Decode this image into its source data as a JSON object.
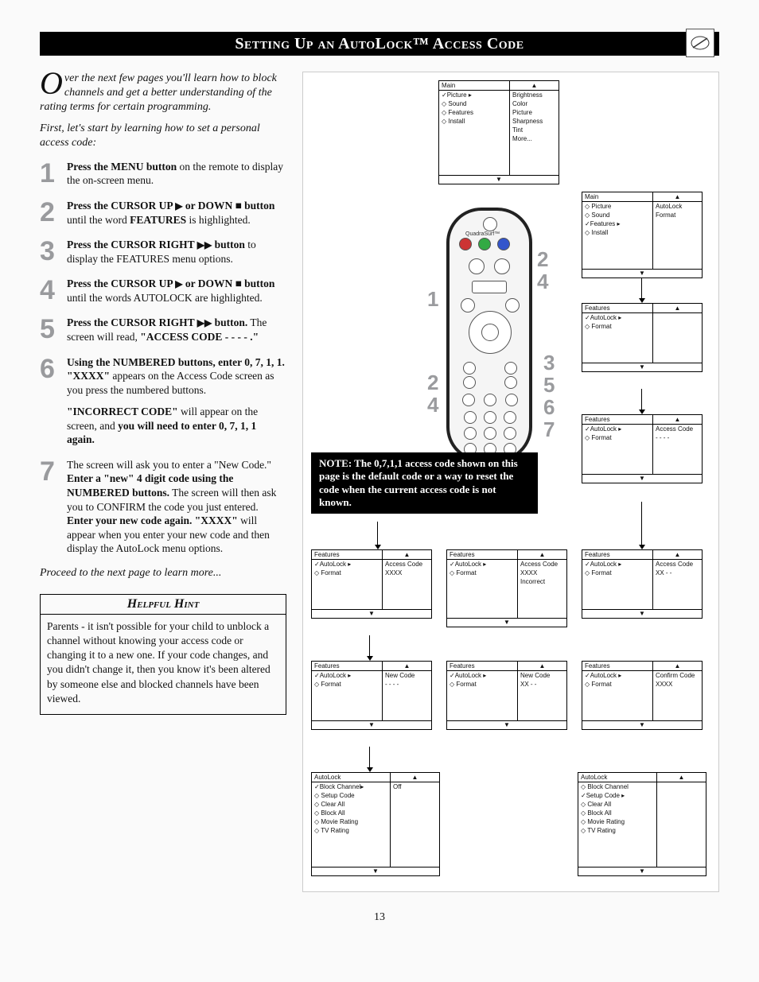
{
  "page": {
    "title": "Setting Up an AutoLock™ Access Code",
    "number": "13"
  },
  "intro": {
    "drop": "O",
    "p1": "ver the next few pages you'll learn how to block channels and get a better understanding of the rating terms for certain programming.",
    "p2": "First, let's start by learning how to set a personal access code:"
  },
  "steps": [
    {
      "n": "1",
      "html": "<span class='bold'>Press the MENU button</span> on the remote to display the on-screen menu."
    },
    {
      "n": "2",
      "html": "<span class='bold'>Press the CURSOR UP <span class='arrow'>▶</span>  or  DOWN ■ button</span> until the word <span class='bold'>FEATURES</span> is highlighted."
    },
    {
      "n": "3",
      "html": "<span class='bold'>Press the CURSOR RIGHT <span class='arrow'>▶▶</span> button</span> to display the FEATURES menu options."
    },
    {
      "n": "4",
      "html": "<span class='bold'>Press the CURSOR UP <span class='arrow'>▶</span> or  DOWN ■ button</span> until the words AUTOLOCK are highlighted."
    },
    {
      "n": "5",
      "html": "<span class='bold'>Press the CURSOR RIGHT <span class='arrow'>▶▶</span> button.</span> The screen will read, <span class='bold'>\"ACCESS CODE - - - - .\"</span>"
    },
    {
      "n": "6",
      "html": "<span class='bold'>Using the NUMBERED buttons, enter 0, 7, 1, 1. \"XXXX\"</span> appears on the Access Code screen as you press the numbered buttons.<div class='sub'><span class='bold'>\"INCORRECT CODE\"</span> will appear on the screen, and <span class='bold'>you will need to enter 0, 7, 1, 1 again.</span></div>"
    },
    {
      "n": "7",
      "html": "The screen will ask you to enter a \"New Code.\" <span class='bold'>Enter a \"new\" 4 digit code using the NUMBERED buttons.</span> The screen will then ask you to CONFIRM the code you just entered. <span class='bold'>Enter your new code again. \"XXXX\"</span> will appear when you enter your new code and then display the AutoLock menu options."
    }
  ],
  "proceed": "Proceed to the next page to learn more...",
  "hint": {
    "title": "Helpful Hint",
    "body": "Parents - it isn't possible for your child to unblock a channel without knowing your access code or changing it to a new one. If your code changes, and you didn't change it, then you know it's been altered by someone else and blocked channels have been viewed."
  },
  "note": "NOTE: The 0,7,1,1 access code shown on this page is the default code or a way to reset the code when the current access code is not known.",
  "menus": {
    "m1": {
      "hdr": "Main",
      "rows": [
        [
          "✓Picture ▸",
          "Brightness"
        ],
        [
          "◇ Sound",
          "Color"
        ],
        [
          "◇ Features",
          "Picture"
        ],
        [
          "◇ Install",
          "Sharpness"
        ],
        [
          "",
          "Tint"
        ],
        [
          "",
          "More..."
        ]
      ]
    },
    "m2": {
      "hdr": "Main",
      "rows": [
        [
          "◇ Picture",
          "AutoLock"
        ],
        [
          "◇ Sound",
          "Format"
        ],
        [
          "✓Features ▸",
          ""
        ],
        [
          "◇ Install",
          ""
        ]
      ]
    },
    "m3": {
      "hdr": "Features",
      "rows": [
        [
          "✓AutoLock ▸",
          ""
        ],
        [
          "◇ Format",
          ""
        ]
      ]
    },
    "m4": {
      "hdr": "Features",
      "rows": [
        [
          "✓AutoLock ▸",
          "Access Code"
        ],
        [
          "◇ Format",
          "- - - -"
        ]
      ]
    },
    "r2a": {
      "hdr": "Features",
      "rows": [
        [
          "✓AutoLock ▸",
          "Access Code"
        ],
        [
          "◇ Format",
          "XXXX"
        ]
      ]
    },
    "r2b": {
      "hdr": "Features",
      "rows": [
        [
          "✓AutoLock ▸",
          "Access Code"
        ],
        [
          "◇ Format",
          "XXXX"
        ],
        [
          "",
          "Incorrect"
        ]
      ]
    },
    "r2c": {
      "hdr": "Features",
      "rows": [
        [
          "✓AutoLock ▸",
          "Access Code"
        ],
        [
          "◇ Format",
          "XX - -"
        ]
      ]
    },
    "r3a": {
      "hdr": "Features",
      "rows": [
        [
          "✓AutoLock ▸",
          "New Code"
        ],
        [
          "◇ Format",
          "- - - -"
        ]
      ]
    },
    "r3b": {
      "hdr": "Features",
      "rows": [
        [
          "✓AutoLock ▸",
          "New Code"
        ],
        [
          "◇ Format",
          "XX - -"
        ]
      ]
    },
    "r3c": {
      "hdr": "Features",
      "rows": [
        [
          "✓AutoLock ▸",
          "Confirm Code"
        ],
        [
          "◇ Format",
          "XXXX"
        ]
      ]
    },
    "r4a": {
      "hdr": "AutoLock",
      "rows": [
        [
          "✓Block Channel▸",
          "Off"
        ],
        [
          "◇ Setup Code",
          ""
        ],
        [
          "◇ Clear All",
          ""
        ],
        [
          "◇ Block All",
          ""
        ],
        [
          "◇ Movie Rating",
          ""
        ],
        [
          "◇ TV Rating",
          ""
        ]
      ]
    },
    "r4b": {
      "hdr": "AutoLock",
      "rows": [
        [
          "◇ Block Channel",
          ""
        ],
        [
          "✓Setup Code ▸",
          ""
        ],
        [
          "◇ Clear All",
          ""
        ],
        [
          "◇ Block All",
          ""
        ],
        [
          "◇ Movie Rating",
          ""
        ],
        [
          "◇ TV Rating",
          ""
        ]
      ]
    }
  },
  "callouts": [
    "1",
    "2",
    "4",
    "2",
    "4",
    "3",
    "5",
    "6",
    "7"
  ]
}
